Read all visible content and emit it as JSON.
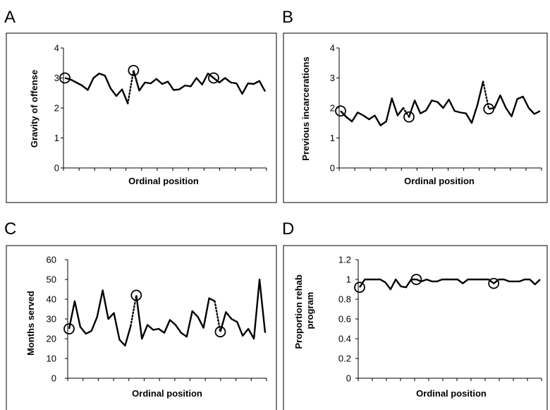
{
  "chart_data": [
    {
      "panel": "A",
      "type": "line",
      "xlabel": "Ordinal position",
      "ylabel": "Gravity of offense",
      "ylim": [
        0,
        4
      ],
      "yticks": [
        "0",
        "1",
        "2",
        "3",
        "4"
      ],
      "segments": [
        [
          3.0,
          2.95,
          2.85,
          2.75,
          2.6,
          3.0,
          3.15,
          3.08,
          2.65,
          2.4,
          2.62,
          2.15
        ],
        [
          3.25,
          2.58,
          2.85,
          2.82,
          2.97,
          2.8,
          2.88,
          2.6,
          2.62,
          2.75,
          2.72,
          3.0,
          2.78,
          3.15,
          3.0,
          2.85,
          3.0,
          2.85,
          2.82,
          2.47,
          2.82,
          2.8,
          2.9,
          2.55
        ]
      ],
      "circled": [
        {
          "segment": 0,
          "index": 0
        },
        {
          "segment": 1,
          "index": 0
        },
        {
          "segment": 1,
          "index": 14
        }
      ]
    },
    {
      "panel": "B",
      "type": "line",
      "xlabel": "Ordinal position",
      "ylabel": "Previous incarcerations",
      "ylim": [
        0,
        4
      ],
      "yticks": [
        "0",
        "1",
        "2",
        "3",
        "4"
      ],
      "segments": [
        [
          1.9,
          1.7,
          1.55,
          1.85,
          1.75,
          1.62,
          1.75,
          1.42,
          1.55,
          2.32,
          1.75,
          2.0
        ],
        [
          1.7,
          2.25,
          1.82,
          1.92,
          2.25,
          2.2,
          2.0,
          2.28,
          1.9,
          1.85,
          1.82,
          1.5,
          2.1,
          2.88
        ],
        [
          1.97,
          2.0,
          2.42,
          2.0,
          1.72,
          2.3,
          2.38,
          2.0,
          1.8,
          1.9
        ]
      ],
      "circled": [
        {
          "segment": 0,
          "index": 0
        },
        {
          "segment": 1,
          "index": 0
        },
        {
          "segment": 2,
          "index": 0
        }
      ]
    },
    {
      "panel": "C",
      "type": "line",
      "xlabel": "Ordinal position",
      "ylabel": "Months served",
      "ylim": [
        0,
        60
      ],
      "yticks": [
        "0",
        "10",
        "20",
        "30",
        "40",
        "50",
        "60"
      ],
      "segments": [
        [
          25,
          39,
          26,
          22.5,
          24,
          31,
          44.5,
          30,
          33,
          19.5,
          16.5,
          26.5
        ],
        [
          42,
          20,
          27,
          24.5,
          25,
          23,
          29.5,
          27,
          23,
          21,
          34,
          31,
          25.5,
          40.5,
          39
        ],
        [
          23.5,
          33.5,
          30,
          28.5,
          21.5,
          25,
          20,
          50,
          23
        ]
      ],
      "circled": [
        {
          "segment": 0,
          "index": 0
        },
        {
          "segment": 1,
          "index": 0
        },
        {
          "segment": 2,
          "index": 0
        }
      ]
    },
    {
      "panel": "D",
      "type": "line",
      "xlabel": "Ordinal position",
      "ylabel": "Proportion rehab program",
      "ylim": [
        0,
        1.2
      ],
      "yticks": [
        "0",
        "0.2",
        "0.4",
        "0.6",
        "0.8",
        "1",
        "1.2"
      ],
      "segments": [
        [
          0.92,
          1.0,
          1.0,
          1.0,
          1.0,
          0.97,
          0.9,
          1.0,
          0.93,
          0.92,
          1.0,
          1.0,
          0.98,
          1.0,
          0.98,
          0.98,
          1.0,
          1.0,
          1.0,
          1.0,
          0.96,
          1.0,
          1.0,
          1.0,
          1.0,
          1.0,
          0.96,
          1.0,
          1.0,
          0.98,
          0.98,
          0.98,
          1.0,
          1.0,
          0.95,
          1.0
        ]
      ],
      "circled": [
        {
          "segment": 0,
          "index": 0
        },
        {
          "segment": 0,
          "index": 11
        },
        {
          "segment": 0,
          "index": 26
        }
      ]
    }
  ]
}
